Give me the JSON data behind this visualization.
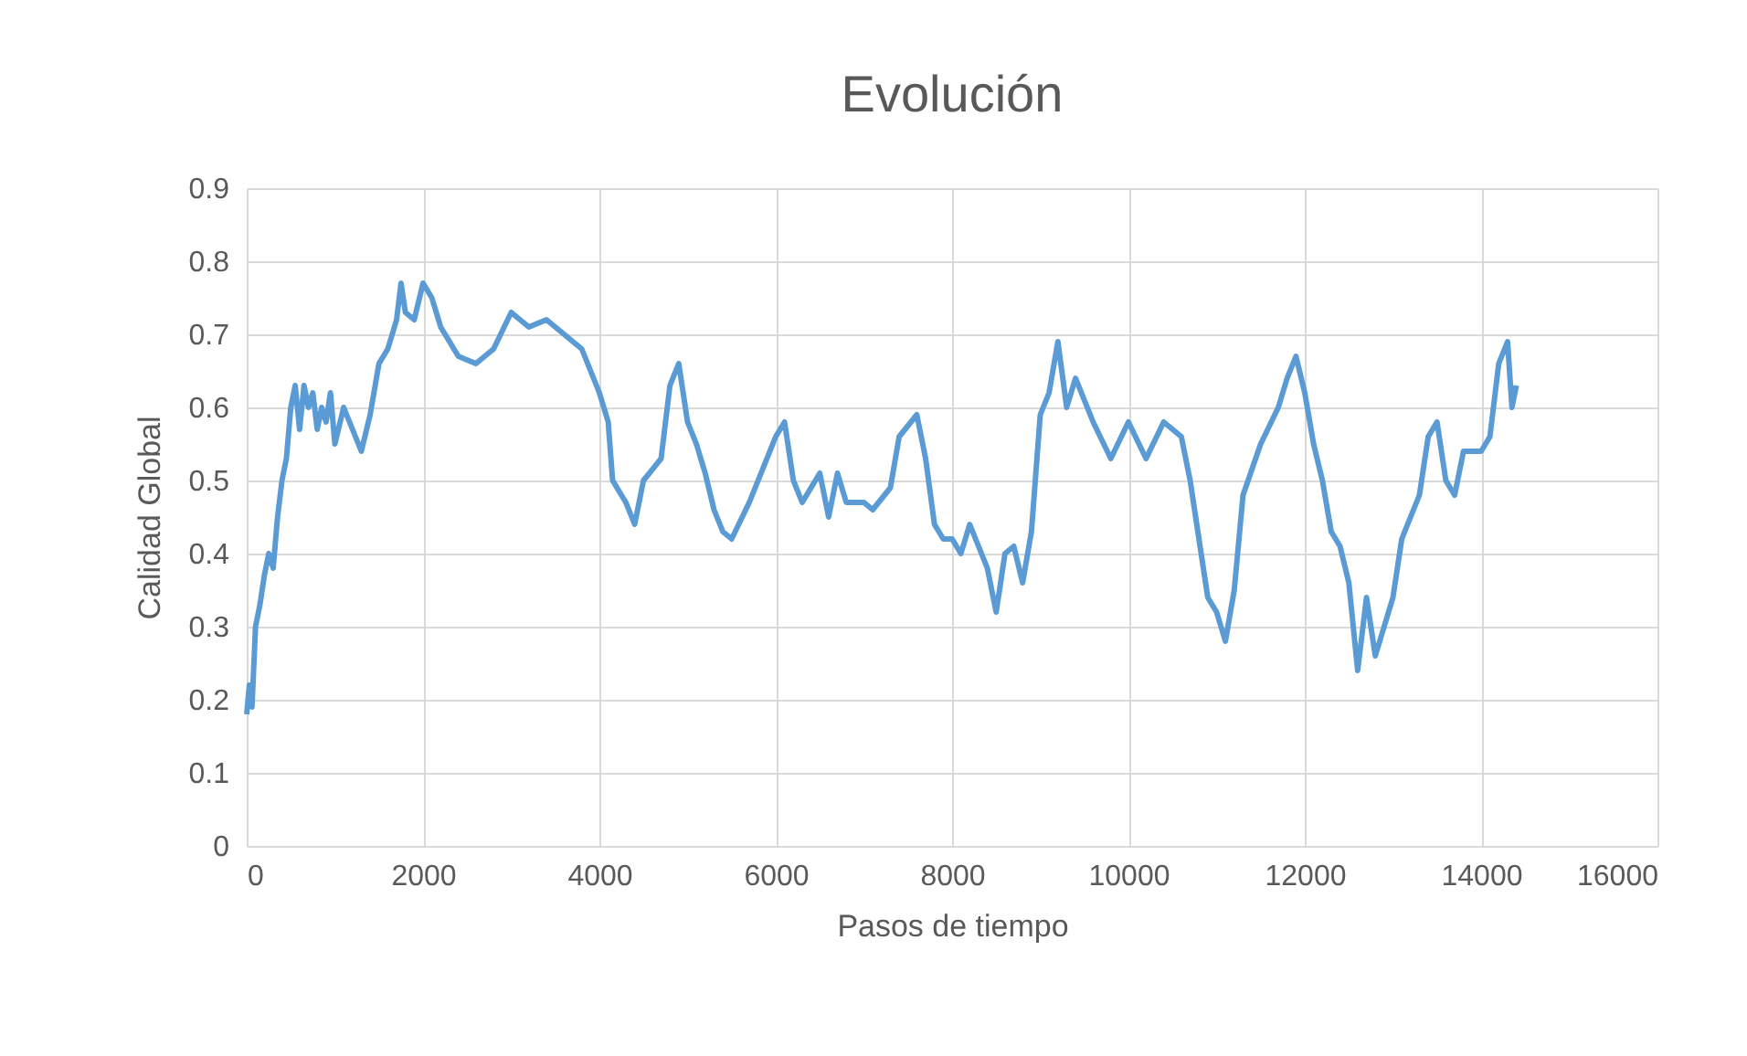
{
  "chart_data": {
    "type": "line",
    "title": "Evolución",
    "xlabel": "Pasos de tiempo",
    "ylabel": "Calidad Global",
    "xlim": [
      0,
      16000
    ],
    "xticks": [
      0,
      2000,
      4000,
      6000,
      8000,
      10000,
      12000,
      14000,
      16000
    ],
    "ylim": [
      0,
      0.9
    ],
    "yticks": [
      0,
      0.1,
      0.2,
      0.3,
      0.4,
      0.5,
      0.6,
      0.7,
      0.8,
      0.9
    ],
    "grid": true,
    "marker": "none",
    "line_style": "solid",
    "x": [
      0,
      30,
      60,
      100,
      150,
      200,
      250,
      300,
      350,
      400,
      450,
      500,
      550,
      600,
      650,
      700,
      750,
      800,
      850,
      900,
      950,
      1000,
      1100,
      1200,
      1300,
      1400,
      1500,
      1600,
      1700,
      1750,
      1800,
      1900,
      2000,
      2100,
      2200,
      2400,
      2600,
      2800,
      3000,
      3200,
      3400,
      3600,
      3800,
      4000,
      4100,
      4150,
      4300,
      4400,
      4500,
      4700,
      4800,
      4900,
      5000,
      5100,
      5200,
      5300,
      5400,
      5500,
      5700,
      5800,
      6000,
      6100,
      6200,
      6300,
      6500,
      6600,
      6700,
      6800,
      7000,
      7100,
      7300,
      7400,
      7600,
      7700,
      7800,
      7900,
      8000,
      8100,
      8200,
      8400,
      8500,
      8600,
      8700,
      8800,
      8900,
      9000,
      9100,
      9200,
      9300,
      9400,
      9600,
      9800,
      10000,
      10200,
      10400,
      10600,
      10700,
      10800,
      10900,
      11000,
      11100,
      11200,
      11300,
      11500,
      11700,
      11800,
      11900,
      12000,
      12100,
      12200,
      12300,
      12400,
      12500,
      12600,
      12700,
      12800,
      12900,
      13000,
      13100,
      13300,
      13400,
      13500,
      13600,
      13700,
      13800,
      14000,
      14100,
      14200,
      14300,
      14350,
      14400
    ],
    "series": [
      {
        "color": "#5b9bd5",
        "values": [
          0.18,
          0.22,
          0.19,
          0.3,
          0.33,
          0.37,
          0.4,
          0.38,
          0.45,
          0.5,
          0.53,
          0.6,
          0.63,
          0.57,
          0.63,
          0.6,
          0.62,
          0.57,
          0.6,
          0.58,
          0.62,
          0.55,
          0.6,
          0.57,
          0.54,
          0.59,
          0.66,
          0.68,
          0.72,
          0.77,
          0.73,
          0.72,
          0.77,
          0.75,
          0.71,
          0.67,
          0.66,
          0.68,
          0.73,
          0.71,
          0.72,
          0.7,
          0.68,
          0.62,
          0.58,
          0.5,
          0.47,
          0.44,
          0.5,
          0.53,
          0.63,
          0.66,
          0.58,
          0.55,
          0.51,
          0.46,
          0.43,
          0.42,
          0.47,
          0.5,
          0.56,
          0.58,
          0.5,
          0.47,
          0.51,
          0.45,
          0.51,
          0.47,
          0.47,
          0.46,
          0.49,
          0.56,
          0.59,
          0.53,
          0.44,
          0.42,
          0.42,
          0.4,
          0.44,
          0.38,
          0.32,
          0.4,
          0.41,
          0.36,
          0.43,
          0.59,
          0.62,
          0.69,
          0.6,
          0.64,
          0.58,
          0.53,
          0.58,
          0.53,
          0.58,
          0.56,
          0.5,
          0.42,
          0.34,
          0.32,
          0.28,
          0.35,
          0.48,
          0.55,
          0.6,
          0.64,
          0.67,
          0.62,
          0.55,
          0.5,
          0.43,
          0.41,
          0.36,
          0.24,
          0.34,
          0.26,
          0.3,
          0.34,
          0.42,
          0.48,
          0.56,
          0.58,
          0.5,
          0.48,
          0.54,
          0.54,
          0.56,
          0.66,
          0.69,
          0.6,
          0.63
        ]
      }
    ]
  }
}
